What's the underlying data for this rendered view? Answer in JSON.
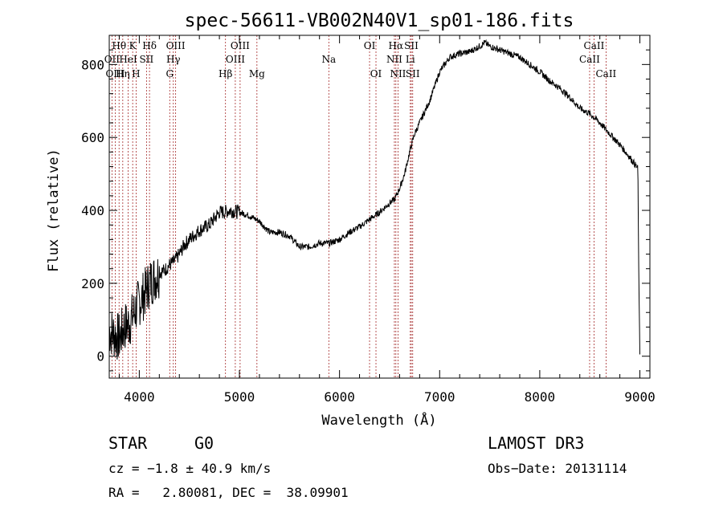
{
  "chart_data": {
    "type": "line",
    "title": "spec-56611-VB002N40V1_sp01-186.fits",
    "xlabel": "Wavelength (Å)",
    "ylabel": "Flux (relative)",
    "xlim": [
      3700,
      9100
    ],
    "ylim": [
      -60,
      880
    ],
    "xticks": [
      4000,
      5000,
      6000,
      7000,
      8000,
      9000
    ],
    "yticks": [
      0,
      200,
      400,
      600,
      800
    ],
    "series": [
      {
        "name": "flux",
        "x": [
          3700,
          3750,
          3800,
          3850,
          3900,
          3950,
          4000,
          4050,
          4100,
          4150,
          4200,
          4250,
          4300,
          4350,
          4400,
          4450,
          4500,
          4600,
          4700,
          4800,
          4850,
          4900,
          5000,
          5100,
          5200,
          5300,
          5400,
          5500,
          5600,
          5700,
          5800,
          5900,
          6000,
          6100,
          6200,
          6300,
          6400,
          6500,
          6550,
          6600,
          6650,
          6700,
          6750,
          6800,
          6900,
          7000,
          7100,
          7200,
          7300,
          7400,
          7450,
          7500,
          7600,
          7700,
          7800,
          7900,
          8000,
          8100,
          8200,
          8300,
          8400,
          8500,
          8600,
          8700,
          8800,
          8900,
          8980,
          8990,
          9000
        ],
        "y": [
          70,
          60,
          50,
          80,
          90,
          120,
          150,
          170,
          200,
          215,
          230,
          235,
          250,
          260,
          280,
          305,
          320,
          345,
          360,
          395,
          395,
          400,
          395,
          385,
          370,
          340,
          340,
          330,
          300,
          300,
          310,
          310,
          320,
          340,
          355,
          375,
          395,
          420,
          430,
          460,
          500,
          560,
          610,
          640,
          700,
          780,
          820,
          830,
          835,
          850,
          860,
          850,
          840,
          830,
          820,
          800,
          780,
          755,
          735,
          710,
          680,
          665,
          640,
          610,
          580,
          545,
          515,
          200,
          5
        ]
      }
    ],
    "emission_lines": [
      {
        "label": "Hθ",
        "wavelength": 3798,
        "row": 1
      },
      {
        "label": "OII",
        "wavelength": 3727,
        "row": 2
      },
      {
        "label": "OIII",
        "wavelength": 3760,
        "row": 3
      },
      {
        "label": "Hη",
        "wavelength": 3835,
        "row": 3
      },
      {
        "label": "HeI",
        "wavelength": 3889,
        "row": 2
      },
      {
        "label": "K",
        "wavelength": 3934,
        "row": 1
      },
      {
        "label": "H",
        "wavelength": 3968,
        "row": 3
      },
      {
        "label": "SII",
        "wavelength": 4072,
        "row": 2
      },
      {
        "label": "Hδ",
        "wavelength": 4102,
        "row": 1
      },
      {
        "label": "OIII",
        "wavelength": 4363,
        "row": 1
      },
      {
        "label": "Hγ",
        "wavelength": 4340,
        "row": 2
      },
      {
        "label": "G",
        "wavelength": 4304,
        "row": 3
      },
      {
        "label": "Hβ",
        "wavelength": 4861,
        "row": 3
      },
      {
        "label": "OIII",
        "wavelength": 5007,
        "row": 1
      },
      {
        "label": "OIII",
        "wavelength": 4959,
        "row": 2
      },
      {
        "label": "Mg",
        "wavelength": 5175,
        "row": 3
      },
      {
        "label": "Na",
        "wavelength": 5893,
        "row": 2
      },
      {
        "label": "OI",
        "wavelength": 6300,
        "row": 1
      },
      {
        "label": "OI",
        "wavelength": 6364,
        "row": 3
      },
      {
        "label": "Hα",
        "wavelength": 6563,
        "row": 1
      },
      {
        "label": "NII",
        "wavelength": 6548,
        "row": 2
      },
      {
        "label": "NII",
        "wavelength": 6584,
        "row": 3
      },
      {
        "label": "SII",
        "wavelength": 6717,
        "row": 1
      },
      {
        "label": "Li",
        "wavelength": 6707,
        "row": 2
      },
      {
        "label": "SII",
        "wavelength": 6731,
        "row": 3
      },
      {
        "label": "CaII",
        "wavelength": 8542,
        "row": 1
      },
      {
        "label": "CaII",
        "wavelength": 8498,
        "row": 2
      },
      {
        "label": "CaII",
        "wavelength": 8662,
        "row": 3
      }
    ]
  },
  "info": {
    "class": "STAR",
    "subclass": "G0",
    "survey": "LAMOST DR3",
    "cz": "cz = −1.8 ± 40.9 km/s",
    "obs_date": "Obs−Date: 20131114",
    "radec": "RA =   2.80081, DEC =  38.09901"
  },
  "colors": {
    "line_marker": "#a52a2a",
    "spectrum": "#000000"
  }
}
